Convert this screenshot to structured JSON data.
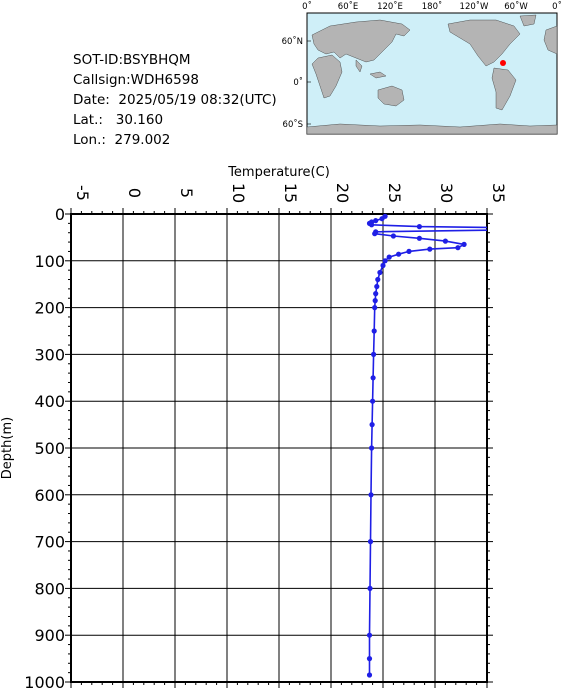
{
  "info": {
    "sot_id": "SOT-ID:BSYBHQM",
    "callsign": "Callsign:WDH6598",
    "date": "Date:  2025/05/19 08:32(UTC)",
    "lat": "Lat.:   30.160",
    "lon": "Lon.:  279.002"
  },
  "map": {
    "top_labels": [
      "0˚",
      "60˚E",
      "120˚E",
      "180˚",
      "120˚W",
      "60˚W",
      "0˚"
    ],
    "left_labels": [
      "60˚N",
      "0˚",
      "60˚S"
    ],
    "ocean_color": "#cfeff8",
    "land_color": "#b4b4b4",
    "marker_color": "#ff0000"
  },
  "chart_data": {
    "type": "line",
    "xlabel": "Temperature(C)",
    "ylabel": "Depth(m)",
    "xlim": [
      -5,
      35
    ],
    "ylim": [
      1000,
      0
    ],
    "x_ticks": [
      "-5",
      "0",
      "5",
      "10",
      "15",
      "20",
      "25",
      "30",
      "35"
    ],
    "y_ticks": [
      "0",
      "100",
      "200",
      "300",
      "400",
      "500",
      "600",
      "700",
      "800",
      "900",
      "1000"
    ],
    "grid": true,
    "series_color": "#1f1fe6",
    "series": [
      {
        "temperature": [
          25.2,
          24.9,
          24.3,
          23.9,
          23.7,
          23.9,
          28.5,
          40,
          40,
          24.3,
          24.2,
          26,
          28.5,
          31,
          32.8,
          32.2,
          29.5,
          27.5,
          26.5,
          25.6,
          25.2,
          25.0,
          24.7,
          24.5,
          24.4,
          24.3,
          24.25,
          24.2,
          24.15,
          24.1,
          24.05,
          24.0,
          23.95,
          23.9,
          23.85,
          23.8,
          23.75,
          23.7,
          23.7,
          23.7
        ],
        "depth": [
          5,
          10,
          14,
          17,
          20,
          23,
          27,
          30,
          33,
          38,
          42,
          47,
          52,
          58,
          65,
          72,
          75,
          80,
          86,
          92,
          100,
          110,
          125,
          140,
          155,
          170,
          185,
          200,
          250,
          300,
          350,
          400,
          450,
          500,
          600,
          700,
          800,
          900,
          950,
          985
        ]
      }
    ]
  }
}
